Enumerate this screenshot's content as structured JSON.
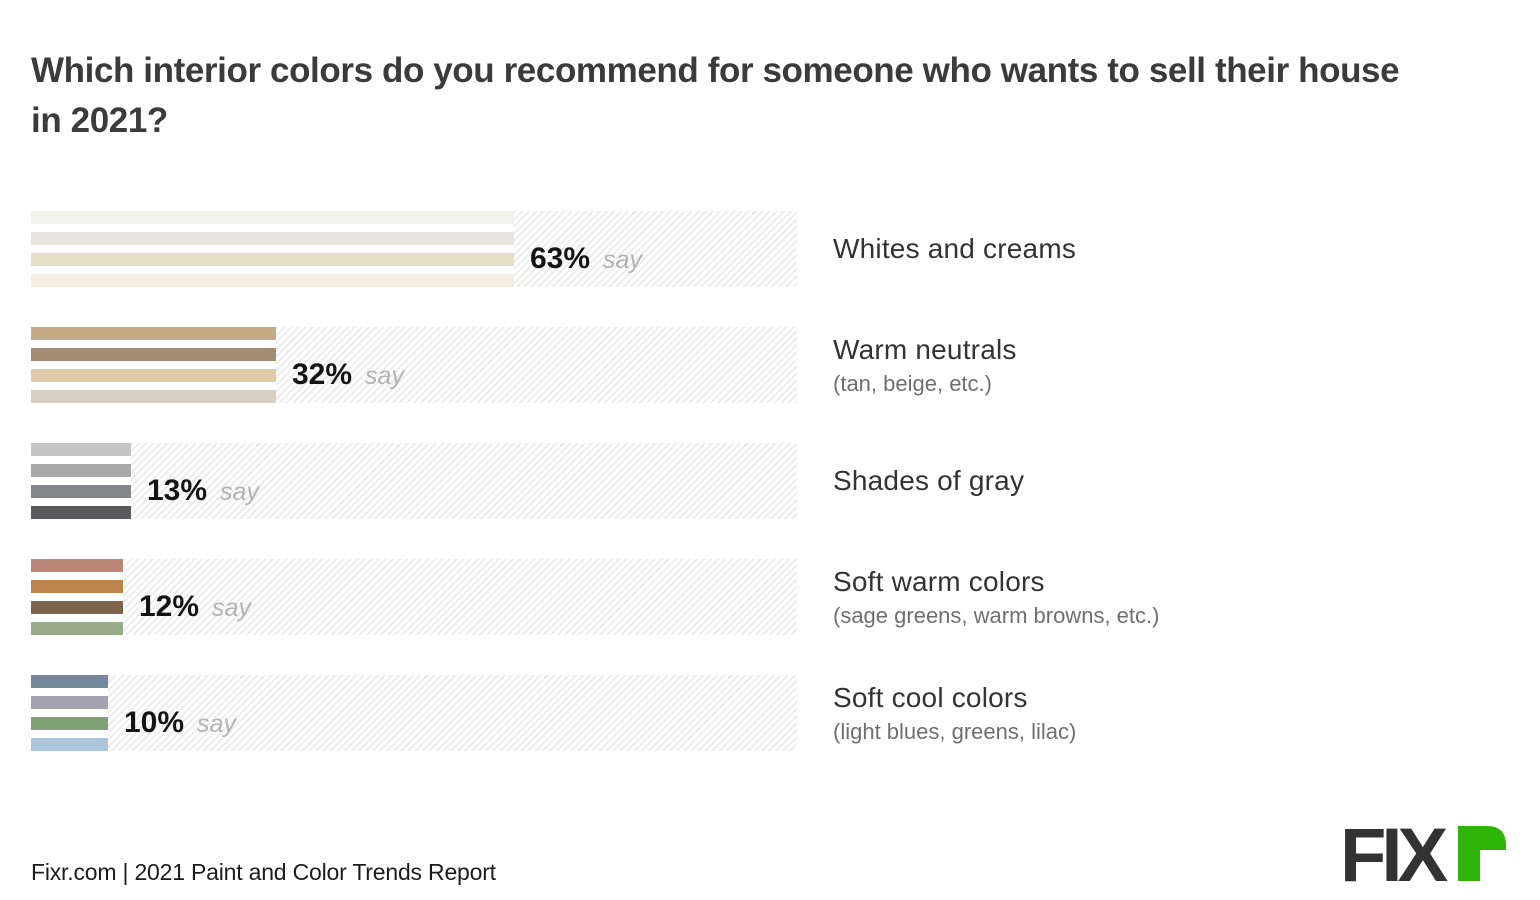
{
  "title": "Which interior colors do you recommend for someone who wants to sell their house in 2021?",
  "value_suffix": "say",
  "source": "Fixr.com | 2021 Paint and Color Trends Report",
  "logo": {
    "name": "FIXR",
    "text_dark": "FIX",
    "text_green_glyph": "r",
    "color_dark": "#333333",
    "color_green": "#2fb508"
  },
  "chart_data": {
    "type": "bar",
    "orientation": "horizontal",
    "unit": "percent",
    "axis_max": 100,
    "grid": false,
    "legend": "none",
    "title": "Which interior colors do you recommend for someone who wants to sell their house in 2021?",
    "categories": [
      "Whites and creams",
      "Warm neutrals",
      "Shades of gray",
      "Soft warm colors",
      "Soft cool colors"
    ],
    "values": [
      63,
      32,
      13,
      12,
      10
    ],
    "groups": [
      {
        "label": "Whites and creams",
        "sublabel": "",
        "value": 63,
        "value_label": "63%",
        "swatches": [
          "#f1f2ec",
          "#e6e4dd",
          "#e5dfc7",
          "#f5eee0"
        ]
      },
      {
        "label": "Warm neutrals",
        "sublabel": "(tan, beige, etc.)",
        "value": 32,
        "value_label": "32%",
        "swatches": [
          "#c3ac85",
          "#a48c74",
          "#ddcaa9",
          "#d7d0c3"
        ]
      },
      {
        "label": "Shades of gray",
        "sublabel": "",
        "value": 13,
        "value_label": "13%",
        "swatches": [
          "#c5c5c5",
          "#a9a9a9",
          "#84878a",
          "#5a5a5c"
        ]
      },
      {
        "label": "Soft warm colors",
        "sublabel": "(sage greens, warm browns, etc.)",
        "value": 12,
        "value_label": "12%",
        "swatches": [
          "#ba8778",
          "#bd834c",
          "#7c634b",
          "#99ab89"
        ]
      },
      {
        "label": "Soft cool colors",
        "sublabel": "(light blues, greens, lilac)",
        "value": 10,
        "value_label": "10%",
        "swatches": [
          "#74899b",
          "#a4a3b1",
          "#7da273",
          "#aec6dc"
        ]
      }
    ]
  }
}
